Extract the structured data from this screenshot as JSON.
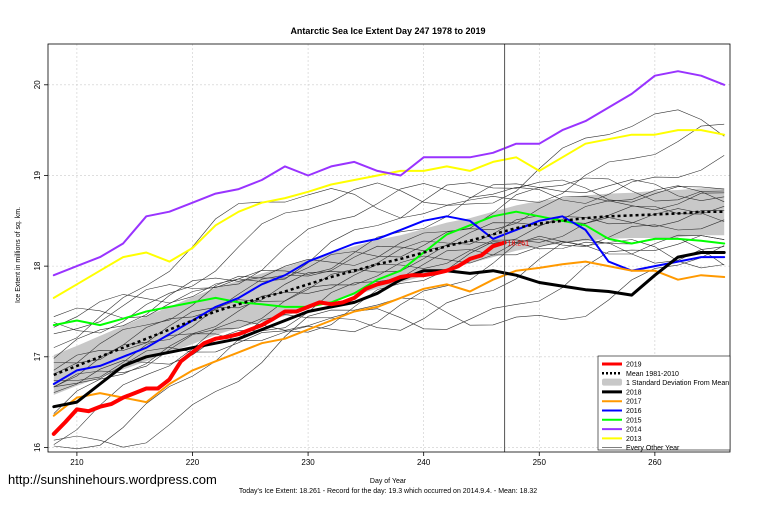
{
  "chart_data": {
    "type": "line",
    "title": "Antarctic Sea Ice Extent Day 247 1978 to 2019",
    "xlabel": "Day of Year",
    "ylabel": "Ice Extent in millions of sq. km.",
    "xlim": [
      207.5,
      266.5
    ],
    "ylim": [
      15.95,
      20.45
    ],
    "xticks": [
      210,
      220,
      230,
      240,
      250,
      260
    ],
    "yticks": [
      16,
      17,
      18,
      19,
      20
    ],
    "grid": true,
    "legend_position": "bottom-right",
    "vline_day": 247,
    "point_label": "18.261",
    "series": [
      {
        "name": "2019",
        "color": "#ff0000",
        "width": 4,
        "x": [
          208,
          209,
          210,
          211,
          212,
          213,
          214,
          215,
          216,
          217,
          218,
          219,
          220,
          221,
          222,
          223,
          224,
          225,
          226,
          227,
          228,
          229,
          230,
          231,
          232,
          233,
          234,
          235,
          236,
          237,
          238,
          239,
          240,
          241,
          242,
          243,
          244,
          245,
          246,
          247
        ],
        "y": [
          16.15,
          16.28,
          16.42,
          16.4,
          16.45,
          16.48,
          16.55,
          16.6,
          16.65,
          16.65,
          16.75,
          16.95,
          17.05,
          17.15,
          17.2,
          17.22,
          17.25,
          17.3,
          17.35,
          17.42,
          17.5,
          17.5,
          17.55,
          17.6,
          17.58,
          17.6,
          17.65,
          17.75,
          17.8,
          17.83,
          17.88,
          17.9,
          17.9,
          17.92,
          17.95,
          18,
          18.08,
          18.12,
          18.22,
          18.26
        ]
      },
      {
        "name": "2018",
        "color": "#000000",
        "width": 3,
        "x": [
          208,
          210,
          212,
          214,
          216,
          218,
          220,
          222,
          224,
          226,
          228,
          230,
          232,
          234,
          236,
          238,
          240,
          242,
          244,
          246,
          248,
          250,
          252,
          254,
          256,
          258,
          260,
          262,
          264,
          266
        ],
        "y": [
          16.45,
          16.5,
          16.7,
          16.9,
          17,
          17.05,
          17.1,
          17.15,
          17.2,
          17.3,
          17.4,
          17.5,
          17.55,
          17.6,
          17.7,
          17.85,
          17.95,
          17.95,
          17.92,
          17.95,
          17.9,
          17.82,
          17.78,
          17.74,
          17.72,
          17.68,
          17.9,
          18.1,
          18.15,
          18.15
        ]
      },
      {
        "name": "2017",
        "color": "#ff9900",
        "width": 2,
        "x": [
          208,
          210,
          212,
          214,
          216,
          218,
          220,
          222,
          224,
          226,
          228,
          230,
          232,
          234,
          236,
          238,
          240,
          242,
          244,
          246,
          248,
          250,
          252,
          254,
          256,
          258,
          260,
          262,
          264,
          266
        ],
        "y": [
          16.35,
          16.55,
          16.6,
          16.55,
          16.5,
          16.7,
          16.85,
          16.95,
          17.05,
          17.15,
          17.2,
          17.3,
          17.4,
          17.5,
          17.55,
          17.65,
          17.75,
          17.8,
          17.72,
          17.85,
          17.95,
          17.98,
          18.02,
          18.05,
          18,
          17.95,
          17.95,
          17.85,
          17.9,
          17.88
        ]
      },
      {
        "name": "2016",
        "color": "#0000ff",
        "width": 2,
        "x": [
          208,
          210,
          212,
          214,
          216,
          218,
          220,
          222,
          224,
          226,
          228,
          230,
          232,
          234,
          236,
          238,
          240,
          242,
          244,
          246,
          248,
          250,
          252,
          254,
          256,
          258,
          260,
          262,
          264,
          266
        ],
        "y": [
          16.7,
          16.85,
          16.9,
          17,
          17.1,
          17.25,
          17.4,
          17.55,
          17.65,
          17.8,
          17.9,
          18.05,
          18.15,
          18.25,
          18.3,
          18.4,
          18.5,
          18.55,
          18.5,
          18.3,
          18.4,
          18.5,
          18.55,
          18.4,
          18.05,
          17.95,
          18,
          18.05,
          18.1,
          18.1
        ]
      },
      {
        "name": "2015",
        "color": "#00ff00",
        "width": 2,
        "x": [
          208,
          210,
          212,
          214,
          216,
          218,
          220,
          222,
          224,
          226,
          228,
          230,
          232,
          234,
          236,
          238,
          240,
          242,
          244,
          246,
          248,
          250,
          252,
          254,
          256,
          258,
          260,
          262,
          264,
          266
        ],
        "y": [
          17.35,
          17.4,
          17.35,
          17.42,
          17.5,
          17.55,
          17.6,
          17.65,
          17.6,
          17.58,
          17.55,
          17.55,
          17.6,
          17.7,
          17.85,
          17.95,
          18.15,
          18.35,
          18.45,
          18.55,
          18.6,
          18.55,
          18.5,
          18.45,
          18.3,
          18.25,
          18.3,
          18.3,
          18.28,
          18.25
        ]
      },
      {
        "name": "2014",
        "color": "#9933ff",
        "width": 2,
        "x": [
          208,
          210,
          212,
          214,
          216,
          218,
          220,
          222,
          224,
          226,
          228,
          230,
          232,
          234,
          236,
          238,
          240,
          242,
          244,
          246,
          248,
          250,
          252,
          254,
          256,
          258,
          260,
          262,
          264,
          266
        ],
        "y": [
          17.9,
          18,
          18.1,
          18.25,
          18.55,
          18.6,
          18.7,
          18.8,
          18.85,
          18.95,
          19.1,
          19,
          19.1,
          19.15,
          19.05,
          19,
          19.2,
          19.2,
          19.2,
          19.25,
          19.35,
          19.35,
          19.5,
          19.6,
          19.75,
          19.9,
          20.1,
          20.15,
          20.1,
          20
        ]
      },
      {
        "name": "2013",
        "color": "#ffff00",
        "width": 2,
        "x": [
          208,
          210,
          212,
          214,
          216,
          218,
          220,
          222,
          224,
          226,
          228,
          230,
          232,
          234,
          236,
          238,
          240,
          242,
          244,
          246,
          248,
          250,
          252,
          254,
          256,
          258,
          260,
          262,
          264,
          266
        ],
        "y": [
          17.65,
          17.8,
          17.95,
          18.1,
          18.15,
          18.05,
          18.2,
          18.45,
          18.6,
          18.7,
          18.75,
          18.82,
          18.9,
          18.95,
          19,
          19.05,
          19.05,
          19.1,
          19.05,
          19.15,
          19.2,
          19.05,
          19.2,
          19.35,
          19.4,
          19.45,
          19.45,
          19.5,
          19.5,
          19.45
        ]
      }
    ],
    "mean": {
      "name": "Mean 1981-2010",
      "color": "#000000",
      "x": [
        208,
        210,
        212,
        214,
        216,
        218,
        220,
        222,
        224,
        226,
        228,
        230,
        232,
        234,
        236,
        238,
        240,
        242,
        244,
        246,
        248,
        250,
        252,
        254,
        256,
        258,
        260,
        262,
        264,
        266
      ],
      "y": [
        16.8,
        16.9,
        17,
        17.1,
        17.2,
        17.3,
        17.4,
        17.5,
        17.58,
        17.65,
        17.72,
        17.8,
        17.88,
        17.95,
        18.02,
        18.08,
        18.15,
        18.22,
        18.28,
        18.35,
        18.42,
        18.47,
        18.5,
        18.53,
        18.55,
        18.56,
        18.57,
        18.58,
        18.6,
        18.6
      ],
      "sd": [
        0.22,
        0.22,
        0.23,
        0.24,
        0.25,
        0.25,
        0.26,
        0.26,
        0.26,
        0.27,
        0.27,
        0.27,
        0.27,
        0.27,
        0.27,
        0.26,
        0.26,
        0.26,
        0.25,
        0.25,
        0.25,
        0.25,
        0.25,
        0.25,
        0.25,
        0.25,
        0.26,
        0.26,
        0.26,
        0.26
      ]
    },
    "sd_band_name": "1 Standard Deviation From Mean",
    "other_years_name": "Every Other Year",
    "other_years_offsets": [
      -0.9,
      -0.75,
      -0.6,
      -0.5,
      -0.4,
      -0.3,
      -0.2,
      -0.12,
      -0.05,
      0.05,
      0.12,
      0.2,
      0.3,
      0.4,
      0.5,
      0.6,
      0.75,
      0.9
    ]
  },
  "footer": {
    "url": "http://sunshinehours.wordpress.com",
    "summary": "Today's Ice Extent: 18.261  - Record for the day: 19.3 which occurred on 2014.9.4.  - Mean: 18.32"
  }
}
